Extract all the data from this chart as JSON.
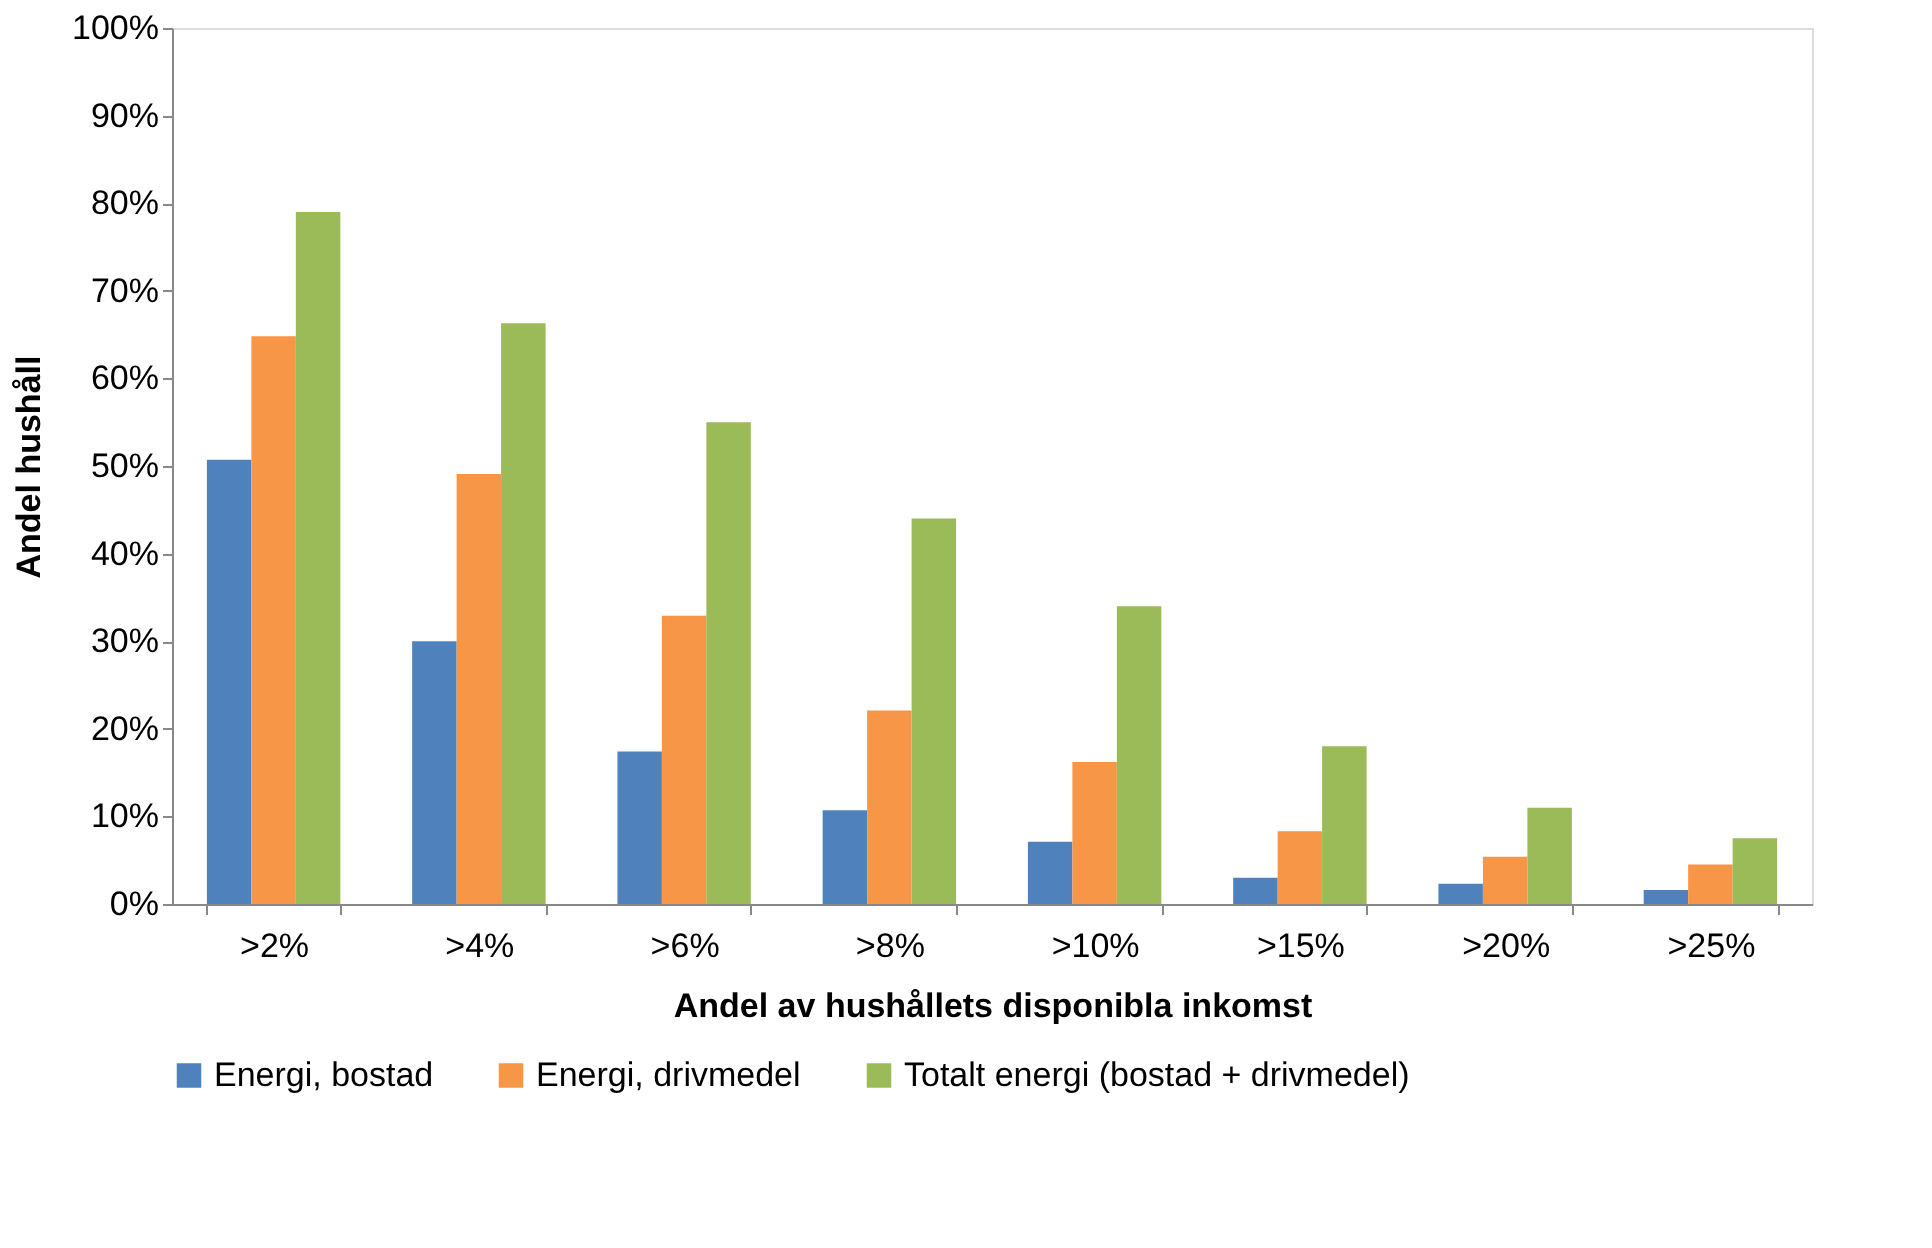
{
  "chart_data": {
    "type": "bar",
    "xlabel": "Andel av hushållets disponibla inkomst",
    "ylabel": "Andel hushåll",
    "categories": [
      ">2%",
      ">4%",
      ">6%",
      ">8%",
      ">10%",
      ">15%",
      ">20%",
      ">25%"
    ],
    "series": [
      {
        "name": "Energi, bostad",
        "color": "#4f81bd",
        "values": [
          50.7,
          30,
          17.4,
          10.7,
          7.1,
          3,
          2.3,
          1.6
        ]
      },
      {
        "name": "Energi, drivmedel",
        "color": "#f79646",
        "values": [
          64.8,
          49.1,
          32.9,
          22.1,
          16.2,
          8.3,
          5.4,
          4.5
        ]
      },
      {
        "name": "Totalt energi (bostad + drivmedel)",
        "color": "#9bbb59",
        "values": [
          79,
          66.3,
          55,
          44,
          34,
          18,
          11,
          7.5
        ]
      }
    ],
    "ylim": [
      0,
      100
    ],
    "yticks": [
      {
        "value": 0,
        "label": "0%"
      },
      {
        "value": 10,
        "label": "10%"
      },
      {
        "value": 20,
        "label": "20%"
      },
      {
        "value": 30,
        "label": "30%"
      },
      {
        "value": 40,
        "label": "40%"
      },
      {
        "value": 50,
        "label": "50%"
      },
      {
        "value": 60,
        "label": "60%"
      },
      {
        "value": 70,
        "label": "70%"
      },
      {
        "value": 80,
        "label": "80%"
      },
      {
        "value": 90,
        "label": "90%"
      },
      {
        "value": 100,
        "label": "100%"
      }
    ],
    "grid": false,
    "legend": "bottom"
  }
}
